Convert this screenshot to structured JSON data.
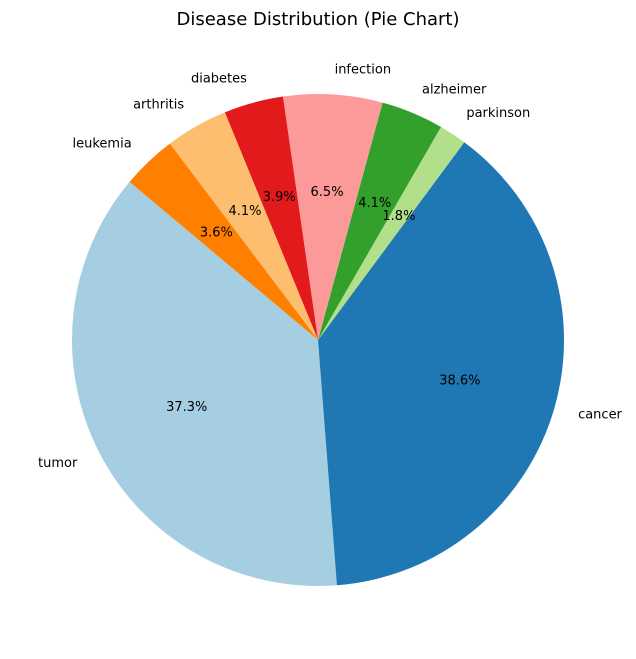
{
  "chart_data": {
    "type": "pie",
    "title": "Disease Distribution (Pie Chart)",
    "categories": [
      "tumor",
      "cancer",
      "parkinson",
      "alzheimer",
      "infection",
      "diabetes",
      "arthritis",
      "leukemia"
    ],
    "values": [
      37.3,
      38.6,
      1.8,
      4.1,
      6.5,
      3.9,
      4.1,
      3.6
    ],
    "percent_labels": [
      "37.3%",
      "38.6%",
      "1.8%",
      "4.1%",
      "6.5%",
      "3.9%",
      "4.1%",
      "3.6%"
    ],
    "colors": [
      "#a6cee3",
      "#1f78b4",
      "#b2df8a",
      "#33a02c",
      "#fb9a99",
      "#e31a1c",
      "#fdbf6f",
      "#ff7f00"
    ],
    "start_angle_deg": 140,
    "direction": "counterclockwise",
    "legend": "none"
  }
}
